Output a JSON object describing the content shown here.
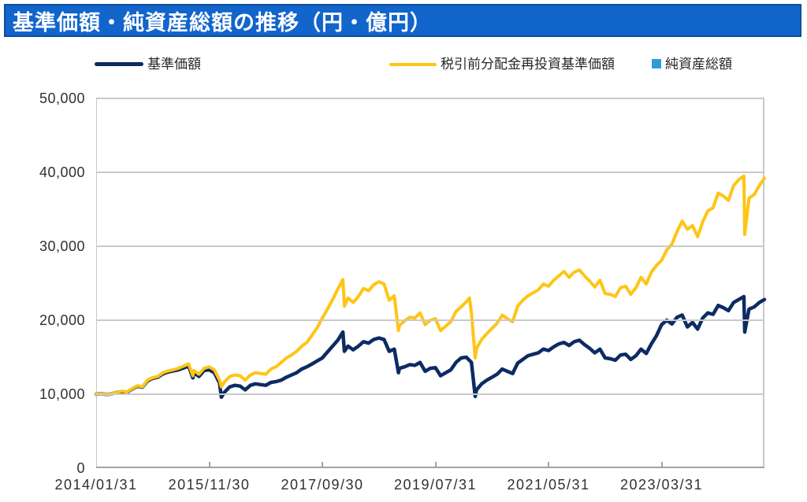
{
  "title": "基準価額・純資産総額の推移（円・億円）",
  "colors": {
    "title_bar_bg": "#1165CB",
    "title_bar_border": "#0B4E9E",
    "title_text": "#FFFFFF",
    "nav_line": "#0D2B63",
    "reinvested_line": "#FFC515",
    "net_assets": "#2F9CD7",
    "gridline": "#C9C9C9",
    "axis_line": "#A3A3A3",
    "axis_text": "#303030"
  },
  "legend": {
    "items": [
      {
        "id": "nav",
        "label": "基準価額",
        "marker": "line",
        "color": "#0D2B63"
      },
      {
        "id": "reinvested",
        "label": "税引前分配金再投資基準価額",
        "marker": "line",
        "color": "#FFC515"
      },
      {
        "id": "net-assets",
        "label": "純資産総額",
        "marker": "square",
        "color": "#2F9CD7"
      }
    ]
  },
  "chart_data": {
    "type": "line",
    "title": "基準価額・純資産総額の推移（円・億円）",
    "legend_position": "top",
    "x_axis": {
      "start_month": "2014/01",
      "end_month": "2024/11",
      "vertical_gridlines": false,
      "ticks": [
        {
          "label": "2014/01/31",
          "month": 0
        },
        {
          "label": "2015/11/30",
          "month": 22
        },
        {
          "label": "2017/09/30",
          "month": 44
        },
        {
          "label": "2019/07/31",
          "month": 66
        },
        {
          "label": "2021/05/31",
          "month": 88
        },
        {
          "label": "2023/03/31",
          "month": 110
        }
      ]
    },
    "y_axis": {
      "min": 0,
      "max": 50000,
      "horizontal_gridlines": true,
      "ticks": [
        {
          "value": 0,
          "label": "0"
        },
        {
          "value": 10000,
          "label": "10,000"
        },
        {
          "value": 20000,
          "label": "20,000"
        },
        {
          "value": 30000,
          "label": "30,000"
        },
        {
          "value": 40000,
          "label": "40,000"
        },
        {
          "value": 50000,
          "label": "50,000"
        }
      ]
    },
    "series": [
      {
        "id": "nav",
        "name": "基準価額",
        "color": "#0D2B63",
        "stroke_width": 4.5,
        "start": "2014/01",
        "monthly": [
          10000,
          10100,
          9950,
          10050,
          10250,
          10350,
          10250,
          10700,
          11100,
          10950,
          11800,
          12150,
          12300,
          12750,
          13000,
          13150,
          13300,
          13550,
          13800,
          12900,
          12400,
          13200,
          13300,
          12900,
          11500,
          10300,
          11000,
          11200,
          11100,
          10600,
          11200,
          11400,
          11300,
          11200,
          11600,
          11700,
          11900,
          12300,
          12600,
          12900,
          13400,
          13700,
          14100,
          14500,
          14900,
          15700,
          16500,
          17300,
          18400,
          16500,
          16000,
          16500,
          17100,
          16900,
          17400,
          17600,
          17400,
          15800,
          16100,
          13500,
          13700,
          14000,
          13900,
          14300,
          13100,
          13500,
          13600,
          12500,
          12900,
          13300,
          14300,
          14900,
          15000,
          14300,
          10600,
          11400,
          11900,
          12300,
          12700,
          13400,
          13100,
          12800,
          14200,
          14700,
          15200,
          15400,
          15600,
          16100,
          15900,
          16400,
          16800,
          17000,
          16600,
          17100,
          17300,
          16700,
          16200,
          15600,
          16100,
          14900,
          14800,
          14600,
          15300,
          15400,
          14700,
          15200,
          16100,
          15500,
          16800,
          17900,
          19400,
          20000,
          19500,
          20400,
          20700,
          19100,
          19700,
          18800,
          20300,
          21000,
          20800,
          22000,
          21700,
          21300,
          22400,
          22800,
          23200,
          21500,
          21800,
          22400,
          22800
        ],
        "extra_points": [
          {
            "d": "2015/08/25",
            "v": 12200
          },
          {
            "d": "2016/02/11",
            "v": 9600
          },
          {
            "d": "2018/02/09",
            "v": 15800
          },
          {
            "d": "2018/12/25",
            "v": 12900
          },
          {
            "d": "2020/03/23",
            "v": 9700
          },
          {
            "d": "2024/08/05",
            "v": 18400
          }
        ]
      },
      {
        "id": "reinvested",
        "name": "税引前分配金再投資基準価額",
        "color": "#FFC515",
        "stroke_width": 4,
        "start": "2014/01",
        "monthly": [
          10000,
          10100,
          9950,
          10050,
          10250,
          10400,
          10300,
          10750,
          11150,
          11000,
          11900,
          12250,
          12400,
          12900,
          13150,
          13300,
          13500,
          13800,
          14100,
          13200,
          12700,
          13500,
          13700,
          13300,
          11900,
          11700,
          12400,
          12600,
          12500,
          11900,
          12600,
          12900,
          12800,
          12700,
          13400,
          13700,
          14300,
          14900,
          15300,
          15800,
          16500,
          17000,
          18000,
          19000,
          20300,
          21500,
          22800,
          24200,
          25500,
          23000,
          22400,
          23200,
          24300,
          24000,
          24800,
          25200,
          24900,
          22700,
          23300,
          19300,
          19900,
          20400,
          20300,
          21000,
          19400,
          20000,
          20200,
          18600,
          19200,
          19800,
          21200,
          21800,
          22500,
          21000,
          16200,
          17400,
          18200,
          18900,
          19600,
          20700,
          20200,
          19800,
          21900,
          22700,
          23300,
          23700,
          24100,
          24900,
          24600,
          25400,
          26000,
          26600,
          25800,
          26500,
          26800,
          26000,
          25300,
          24500,
          25400,
          23600,
          23500,
          23200,
          24400,
          24600,
          23500,
          24400,
          25800,
          24900,
          26500,
          27400,
          28100,
          29500,
          30300,
          32000,
          33400,
          32300,
          32800,
          31300,
          33300,
          34800,
          35200,
          37200,
          36800,
          36200,
          38200,
          39000,
          39500,
          36500,
          37000,
          38200,
          39200
        ],
        "extra_points": [
          {
            "d": "2015/08/25",
            "v": 12500
          },
          {
            "d": "2016/02/11",
            "v": 11000
          },
          {
            "d": "2018/02/09",
            "v": 21900
          },
          {
            "d": "2018/12/25",
            "v": 18600
          },
          {
            "d": "2020/02/19",
            "v": 23000
          },
          {
            "d": "2020/03/23",
            "v": 14900
          },
          {
            "d": "2024/08/05",
            "v": 31600
          }
        ]
      },
      {
        "id": "net-assets",
        "name": "純資産総額",
        "color": "#2F9CD7",
        "style": "area",
        "monthly": [],
        "extra_points": [],
        "note": "legend entry only; series not visibly rendered in plot area (values near zero on this axis scale)"
      }
    ]
  }
}
